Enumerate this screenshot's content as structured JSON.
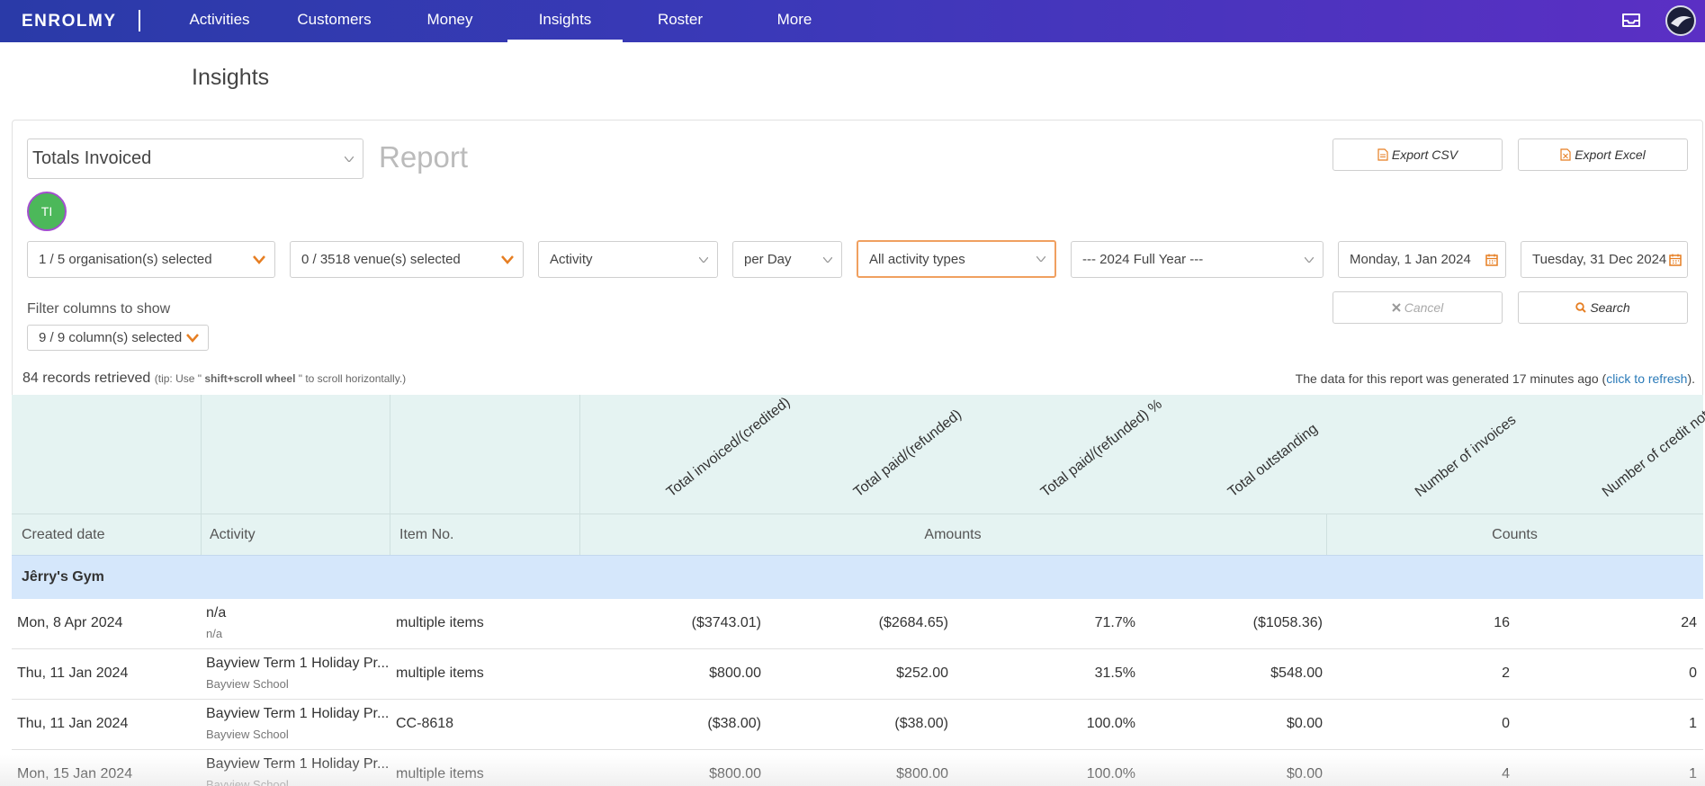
{
  "nav": {
    "logo": "ENROLMY",
    "items": [
      {
        "label": "Activities"
      },
      {
        "label": "Customers"
      },
      {
        "label": "Money"
      },
      {
        "label": "Insights"
      },
      {
        "label": "Roster"
      },
      {
        "label": "More"
      }
    ],
    "active": "Insights",
    "icons": [
      "inbox-icon",
      "user-avatar"
    ]
  },
  "page": {
    "title": "Insights"
  },
  "report": {
    "type_selected": "Totals Invoiced",
    "report_word": "Report",
    "avatar_initials": "TI",
    "export_csv": "Export CSV",
    "export_excel": "Export Excel"
  },
  "filters": {
    "organisations": "1 / 5 organisation(s) selected",
    "venues": "0 / 3518 venue(s) selected",
    "group_by": "Activity",
    "interval": "per Day",
    "activity_types": "All activity types",
    "period": "--- 2024 Full Year ---",
    "start_date": "Monday, 1 Jan 2024",
    "end_date": "Tuesday, 31 Dec 2024",
    "cancel": "Cancel",
    "search": "Search",
    "columns_label": "Filter columns to show",
    "columns_selected": "9 / 9 column(s) selected"
  },
  "status": {
    "records": "84 records retrieved",
    "tip_prefix": "(tip: Use \"",
    "tip_key": " shift+scroll wheel ",
    "tip_suffix": "\" to scroll horizontally.)",
    "generated_prefix": "The data for this report was generated 17 minutes ago (",
    "generated_link": "click to refresh",
    "generated_suffix": ")."
  },
  "table": {
    "rotated_headers": [
      "Total invoiced/(credited)",
      "Total paid/(refunded)",
      "Total paid/(refunded) %",
      "Total outstanding",
      "Number of invoices",
      "Number of credit notes"
    ],
    "group_headers": {
      "created_date": "Created date",
      "activity": "Activity",
      "item_no": "Item No.",
      "amounts": "Amounts",
      "counts": "Counts"
    },
    "group_name": "Jêrry's Gym",
    "rows": [
      {
        "date": "Mon, 8 Apr 2024",
        "activity": "n/a",
        "venue": "n/a",
        "item": "multiple items",
        "item_link": false,
        "invoiced": "($3743.01)",
        "paid": "($2684.65)",
        "pct": "71.7%",
        "outstanding": "($1058.36)",
        "invoices": "16",
        "credits": "24"
      },
      {
        "date": "Thu, 11 Jan 2024",
        "activity": "Bayview Term 1 Holiday Pr...",
        "venue": "Bayview School",
        "item": "multiple items",
        "item_link": false,
        "invoiced": "$800.00",
        "paid": "$252.00",
        "pct": "31.5%",
        "outstanding": "$548.00",
        "invoices": "2",
        "credits": "0"
      },
      {
        "date": "Thu, 11 Jan 2024",
        "activity": "Bayview Term 1 Holiday Pr...",
        "venue": "Bayview School",
        "item": "CC-8618",
        "item_link": true,
        "invoiced": "($38.00)",
        "paid": "($38.00)",
        "pct": "100.0%",
        "outstanding": "$0.00",
        "invoices": "0",
        "credits": "1"
      },
      {
        "date": "Mon, 15 Jan 2024",
        "activity": "Bayview Term 1 Holiday Pr...",
        "venue": "Bayview School",
        "item": "multiple items",
        "item_link": false,
        "invoiced": "$800.00",
        "paid": "$800.00",
        "pct": "100.0%",
        "outstanding": "$0.00",
        "invoices": "4",
        "credits": "1"
      }
    ]
  }
}
